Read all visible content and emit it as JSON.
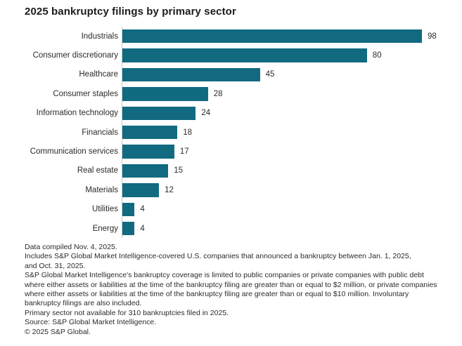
{
  "chart_data": {
    "type": "bar",
    "orientation": "horizontal",
    "title": "2025 bankruptcy filings by primary sector",
    "categories": [
      "Industrials",
      "Consumer discretionary",
      "Healthcare",
      "Consumer staples",
      "Information technology",
      "Financials",
      "Communication services",
      "Real estate",
      "Materials",
      "Utilities",
      "Energy"
    ],
    "values": [
      98,
      80,
      45,
      28,
      24,
      18,
      17,
      15,
      12,
      4,
      4
    ],
    "xlim": [
      0,
      98
    ],
    "bar_color": "#116a80",
    "axis_line_color": "#c8c8c8",
    "value_labels": true,
    "grid": false,
    "legend": "none",
    "xlabel": "",
    "ylabel": ""
  },
  "notes": {
    "lines": [
      "Data compiled Nov. 4, 2025.",
      "Includes S&P Global Market Intelligence-covered U.S. companies that announced a bankruptcy between Jan. 1, 2025,",
      "and Oct. 31, 2025.",
      "S&P Global Market Intelligence's bankruptcy coverage is limited to public companies or private companies with public debt",
      "where either assets or liabilities at the time of the bankruptcy filing are greater than or equal to $2 million, or private companies",
      "where either assets or liabilities at the time of the bankruptcy filing are greater than or equal to $10 million. Involuntary",
      "bankruptcy filings are also included.",
      "Primary sector not available for 310 bankruptcies filed in 2025.",
      "Source: S&P Global Market Intelligence.",
      "© 2025 S&P Global."
    ]
  }
}
